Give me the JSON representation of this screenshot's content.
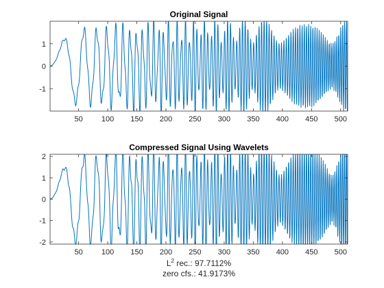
{
  "chart_data": [
    {
      "type": "line",
      "title": "Original Signal",
      "xlabel": "",
      "ylabel": "",
      "xlim": [
        1,
        512
      ],
      "ylim": [
        -2,
        2
      ],
      "xticks": [
        50,
        100,
        150,
        200,
        250,
        300,
        350,
        400,
        450,
        500
      ],
      "yticks": [
        -1,
        0,
        1
      ],
      "grid": false,
      "series": [
        {
          "color": "#0072BD",
          "description": "chirp-like oscillation; amplitude about 1.6, frequency increasing with sample index",
          "x_range": [
            1,
            512
          ],
          "amplitude_approx": 1.6
        }
      ]
    },
    {
      "type": "line",
      "title": "Compressed Signal Using Wavelets",
      "xlabel": "",
      "ylabel": "",
      "xlim": [
        1,
        512
      ],
      "ylim": [
        -2.1,
        2.1
      ],
      "xticks": [
        50,
        100,
        150,
        200,
        250,
        300,
        350,
        400,
        450,
        500
      ],
      "yticks": [
        -2,
        -1,
        0,
        1,
        2
      ],
      "grid": false,
      "series": [
        {
          "color": "#0072BD",
          "description": "wavelet-compressed reconstruction of the original chirp signal",
          "x_range": [
            1,
            512
          ],
          "amplitude_approx": 1.8
        }
      ]
    }
  ],
  "annotation": {
    "l2_label": "L",
    "l2_exponent": "2",
    "l2_suffix": " rec.:  97.7112%",
    "zero_line": "zero  cfs.:  41.9173%"
  }
}
